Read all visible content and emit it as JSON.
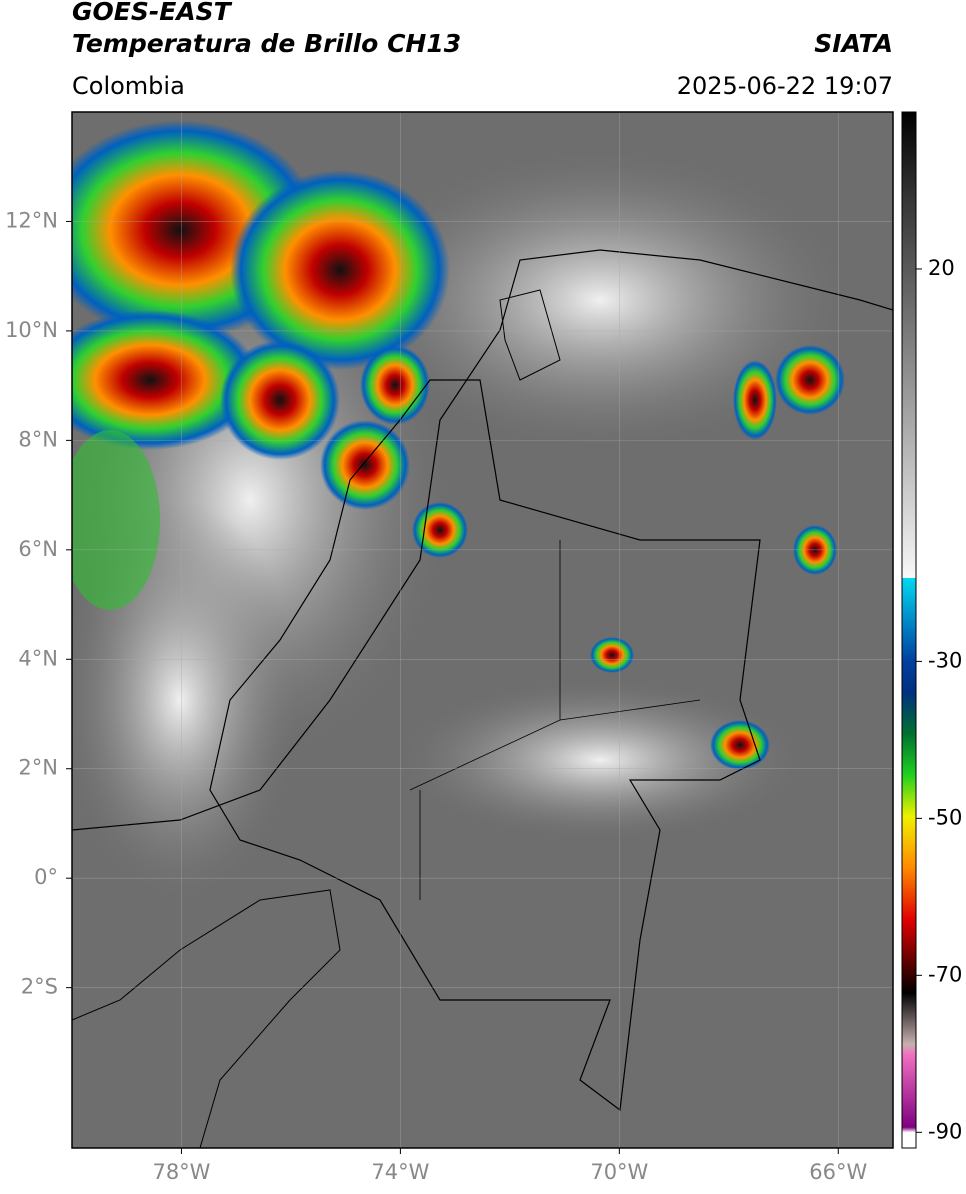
{
  "header": {
    "satellite": "GOES-EAST",
    "product": "Temperatura de Brillo CH13",
    "source": "SIATA",
    "region": "Colombia",
    "datetime": "2025-06-22 19:07"
  },
  "map": {
    "xlim": [
      -80,
      -65
    ],
    "ylim": [
      -4.93,
      14
    ],
    "xticks": [
      {
        "value": -78,
        "label": "78°W"
      },
      {
        "value": -74,
        "label": "74°W"
      },
      {
        "value": -70,
        "label": "70°W"
      },
      {
        "value": -66,
        "label": "66°W"
      }
    ],
    "yticks": [
      {
        "value": 12,
        "label": "12°N"
      },
      {
        "value": 10,
        "label": "10°N"
      },
      {
        "value": 8,
        "label": "8°N"
      },
      {
        "value": 6,
        "label": "6°N"
      },
      {
        "value": 4,
        "label": "4°N"
      },
      {
        "value": 2,
        "label": "2°N"
      },
      {
        "value": 0,
        "label": "0°"
      },
      {
        "value": -2,
        "label": "2°S"
      }
    ],
    "grid": true
  },
  "colorbar": {
    "lim": [
      -92,
      40
    ],
    "ticks": [
      20,
      -30,
      -50,
      -70,
      -90
    ]
  }
}
